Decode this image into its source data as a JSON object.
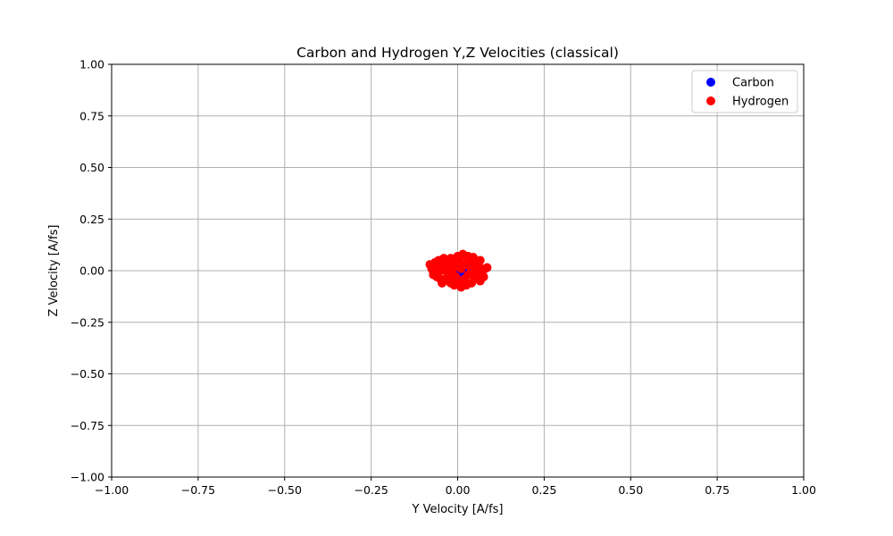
{
  "chart_data": {
    "type": "scatter",
    "title": "Carbon and Hydrogen Y,Z Velocities (classical)",
    "xlabel": "Y Velocity [A/fs]",
    "ylabel": "Z Velocity [A/fs]",
    "xlim": [
      -1.0,
      1.0
    ],
    "ylim": [
      -1.0,
      1.0
    ],
    "xticks": [
      -1.0,
      -0.75,
      -0.5,
      -0.25,
      0.0,
      0.25,
      0.5,
      0.75,
      1.0
    ],
    "yticks": [
      -1.0,
      -0.75,
      -0.5,
      -0.25,
      0.0,
      0.25,
      0.5,
      0.75,
      1.0
    ],
    "xtick_labels": [
      "−1.00",
      "−0.75",
      "−0.50",
      "−0.25",
      "0.00",
      "0.25",
      "0.50",
      "0.75",
      "1.00"
    ],
    "ytick_labels": [
      "−1.00",
      "−0.75",
      "−0.50",
      "−0.25",
      "0.00",
      "0.25",
      "0.50",
      "0.75",
      "1.00"
    ],
    "grid": true,
    "legend_position": "top-right",
    "series": [
      {
        "name": "Carbon",
        "color": "#0000ff",
        "points": [
          [
            0.0,
            0.0
          ],
          [
            0.01,
            -0.01
          ],
          [
            -0.01,
            0.01
          ],
          [
            0.015,
            0.005
          ],
          [
            -0.012,
            -0.008
          ]
        ]
      },
      {
        "name": "Hydrogen",
        "color": "#ff0000",
        "points": [
          [
            -0.08,
            0.03
          ],
          [
            -0.075,
            0.01
          ],
          [
            -0.07,
            -0.02
          ],
          [
            -0.065,
            0.04
          ],
          [
            -0.06,
            -0.03
          ],
          [
            -0.055,
            0.05
          ],
          [
            -0.05,
            0.0
          ],
          [
            -0.045,
            -0.06
          ],
          [
            -0.04,
            0.06
          ],
          [
            -0.04,
            0.02
          ],
          [
            -0.035,
            -0.04
          ],
          [
            -0.03,
            0.05
          ],
          [
            -0.03,
            -0.01
          ],
          [
            -0.025,
            0.03
          ],
          [
            -0.02,
            -0.06
          ],
          [
            -0.02,
            0.06
          ],
          [
            -0.015,
            0.0
          ],
          [
            -0.01,
            -0.07
          ],
          [
            -0.01,
            0.04
          ],
          [
            -0.005,
            -0.03
          ],
          [
            0.0,
            0.07
          ],
          [
            0.0,
            0.02
          ],
          [
            0.0,
            -0.05
          ],
          [
            0.005,
            0.05
          ],
          [
            0.01,
            -0.08
          ],
          [
            0.01,
            0.01
          ],
          [
            0.015,
            0.08
          ],
          [
            0.02,
            -0.04
          ],
          [
            0.02,
            0.03
          ],
          [
            0.025,
            -0.07
          ],
          [
            0.03,
            0.06
          ],
          [
            0.03,
            -0.02
          ],
          [
            0.035,
            0.02
          ],
          [
            0.04,
            -0.06
          ],
          [
            0.04,
            0.05
          ],
          [
            0.045,
            0.0
          ],
          [
            0.05,
            -0.04
          ],
          [
            0.05,
            0.04
          ],
          [
            0.055,
            -0.02
          ],
          [
            0.06,
            0.03
          ],
          [
            0.065,
            -0.05
          ],
          [
            0.065,
            0.05
          ],
          [
            0.07,
            0.0
          ],
          [
            0.075,
            -0.03
          ],
          [
            0.08,
            0.01
          ],
          [
            0.085,
            0.015
          ],
          [
            -0.06,
            0.02
          ],
          [
            -0.05,
            -0.04
          ],
          [
            0.03,
            0.07
          ],
          [
            -0.02,
            -0.02
          ],
          [
            0.045,
            0.065
          ],
          [
            -0.07,
            -0.01
          ],
          [
            0.06,
            -0.01
          ],
          [
            -0.045,
            0.045
          ],
          [
            0.02,
            -0.06
          ]
        ]
      }
    ]
  }
}
